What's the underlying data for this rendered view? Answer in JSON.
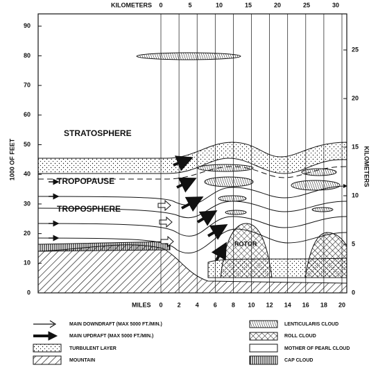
{
  "axes": {
    "top_title": "KILOMETERS",
    "top_ticks": [
      "0",
      "5",
      "10",
      "15",
      "20",
      "25",
      "30"
    ],
    "left_title": "1000 OF FEET",
    "left_ticks": [
      "0",
      "10",
      "20",
      "30",
      "40",
      "50",
      "60",
      "70",
      "80",
      "90"
    ],
    "right_title": "KILOMETERS",
    "right_ticks": [
      "0",
      "5",
      "10",
      "15",
      "20",
      "25"
    ],
    "bottom_title": "MILES",
    "bottom_ticks": [
      "0",
      "2",
      "4",
      "6",
      "8",
      "10",
      "12",
      "14",
      "16",
      "18",
      "20"
    ]
  },
  "labels": {
    "stratosphere": "STRATOSPHERE",
    "tropopause": "TROPOPAUSE",
    "troposphere": "TROPOSPHERE",
    "rotor": "ROTOR"
  },
  "legend": [
    {
      "label": "MAIN DOWNDRAFT (MAX 5000 FT./MIN.)"
    },
    {
      "label": "MAIN UPDRAFT (MAX 5000 FT./MIN.)"
    },
    {
      "label": "TURBULENT LAYER"
    },
    {
      "label": "MOUNTAIN"
    },
    {
      "label": "LENTICULARIS CLOUD"
    },
    {
      "label": "ROLL CLOUD"
    },
    {
      "label": "MOTHER OF PEARL CLOUD"
    },
    {
      "label": "CAP CLOUD"
    }
  ]
}
